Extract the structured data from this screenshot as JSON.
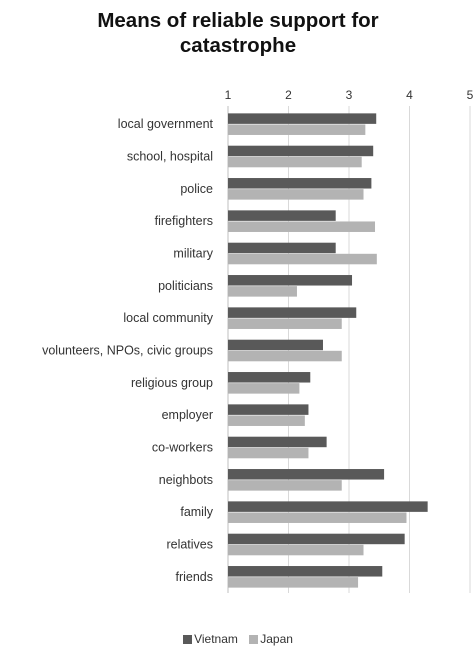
{
  "chart_data": {
    "type": "bar",
    "orientation": "horizontal",
    "title_line1": "Means of reliable support for",
    "title_line2": "catastrophe",
    "xlim": [
      1,
      5
    ],
    "xticks": [
      "1",
      "2",
      "3",
      "4",
      "5"
    ],
    "grid": true,
    "legend_position": "bottom",
    "categories": [
      "local government",
      "school, hospital",
      "police",
      "firefighters",
      "military",
      "politicians",
      "local community",
      "volunteers, NPOs, civic groups",
      "religious group",
      "employer",
      "co-workers",
      "neighbots",
      "family",
      "relatives",
      "friends"
    ],
    "series": [
      {
        "name": "Vietnam",
        "color": "#595959",
        "values": [
          3.45,
          3.4,
          3.37,
          2.78,
          2.78,
          3.05,
          3.12,
          2.57,
          2.36,
          2.33,
          2.63,
          3.58,
          4.3,
          3.92,
          3.55
        ]
      },
      {
        "name": "Japan",
        "color": "#b3b3b3",
        "values": [
          3.27,
          3.21,
          3.24,
          3.43,
          3.46,
          2.14,
          2.88,
          2.88,
          2.18,
          2.27,
          2.33,
          2.88,
          3.95,
          3.24,
          3.15
        ]
      }
    ]
  }
}
